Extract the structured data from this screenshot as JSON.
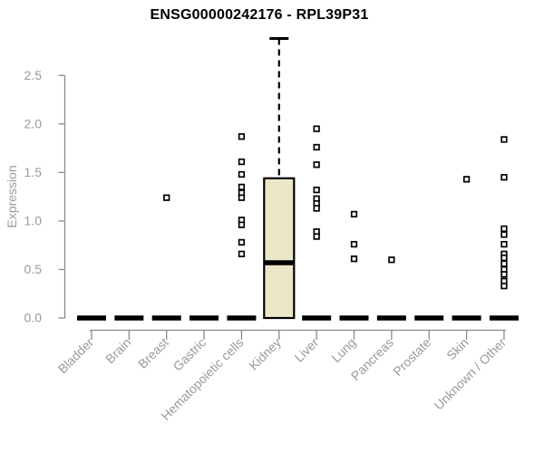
{
  "chart_data": {
    "type": "boxplot",
    "title": "ENSG00000242176 - RPL39P31",
    "xlabel": "",
    "ylabel": "Expression",
    "ylim": [
      0,
      2.9
    ],
    "yticks": [
      0.0,
      0.5,
      1.0,
      1.5,
      2.0,
      2.5
    ],
    "grid": false,
    "legend_position": "none",
    "categories": [
      "Bladder",
      "Brain",
      "Breast",
      "Gastric",
      "Hematopoietic cells",
      "Kidney",
      "Liver",
      "Lung",
      "Pancreas",
      "Prostate",
      "Skin",
      "Unknown / Other"
    ],
    "boxes": [
      {
        "category": "Bladder",
        "min": 0,
        "q1": 0,
        "median": 0,
        "q3": 0,
        "max": 0,
        "outliers": []
      },
      {
        "category": "Brain",
        "min": 0,
        "q1": 0,
        "median": 0,
        "q3": 0,
        "max": 0,
        "outliers": []
      },
      {
        "category": "Breast",
        "min": 0,
        "q1": 0,
        "median": 0,
        "q3": 0,
        "max": 0,
        "outliers": [
          1.24
        ]
      },
      {
        "category": "Gastric",
        "min": 0,
        "q1": 0,
        "median": 0,
        "q3": 0,
        "max": 0,
        "outliers": []
      },
      {
        "category": "Hematopoietic cells",
        "min": 0,
        "q1": 0,
        "median": 0,
        "q3": 0,
        "max": 0,
        "outliers": [
          1.87,
          1.61,
          1.48,
          1.35,
          1.29,
          1.24,
          1.01,
          0.96,
          0.78,
          0.66
        ]
      },
      {
        "category": "Kidney",
        "min": 0,
        "q1": 0,
        "median": 0.57,
        "q3": 1.44,
        "max": 2.88,
        "outliers": []
      },
      {
        "category": "Liver",
        "min": 0,
        "q1": 0,
        "median": 0,
        "q3": 0,
        "max": 0,
        "outliers": [
          1.95,
          1.76,
          1.58,
          1.32,
          1.23,
          1.18,
          1.13,
          0.89,
          0.84
        ]
      },
      {
        "category": "Lung",
        "min": 0,
        "q1": 0,
        "median": 0,
        "q3": 0,
        "max": 0,
        "outliers": [
          1.07,
          0.76,
          0.61
        ]
      },
      {
        "category": "Pancreas",
        "min": 0,
        "q1": 0,
        "median": 0,
        "q3": 0,
        "max": 0,
        "outliers": [
          0.6
        ]
      },
      {
        "category": "Prostate",
        "min": 0,
        "q1": 0,
        "median": 0,
        "q3": 0,
        "max": 0,
        "outliers": []
      },
      {
        "category": "Skin",
        "min": 0,
        "q1": 0,
        "median": 0,
        "q3": 0,
        "max": 0,
        "outliers": [
          1.43
        ]
      },
      {
        "category": "Unknown / Other",
        "min": 0,
        "q1": 0,
        "median": 0,
        "q3": 0,
        "max": 0,
        "outliers": [
          1.84,
          1.45,
          0.92,
          0.86,
          0.76,
          0.66,
          0.62,
          0.56,
          0.5,
          0.45,
          0.38,
          0.33
        ]
      }
    ],
    "colors": {
      "box_fill": "#ECE6C8",
      "box_stroke": "#000000",
      "median": "#000000",
      "whisker": "#000000",
      "outlier_stroke": "#000000",
      "outlier_fill": "#FFFFFF",
      "axis": "#8a8a8a",
      "tick_label": "#9a9a9a",
      "title": "#000000",
      "background": "#FFFFFF"
    }
  }
}
